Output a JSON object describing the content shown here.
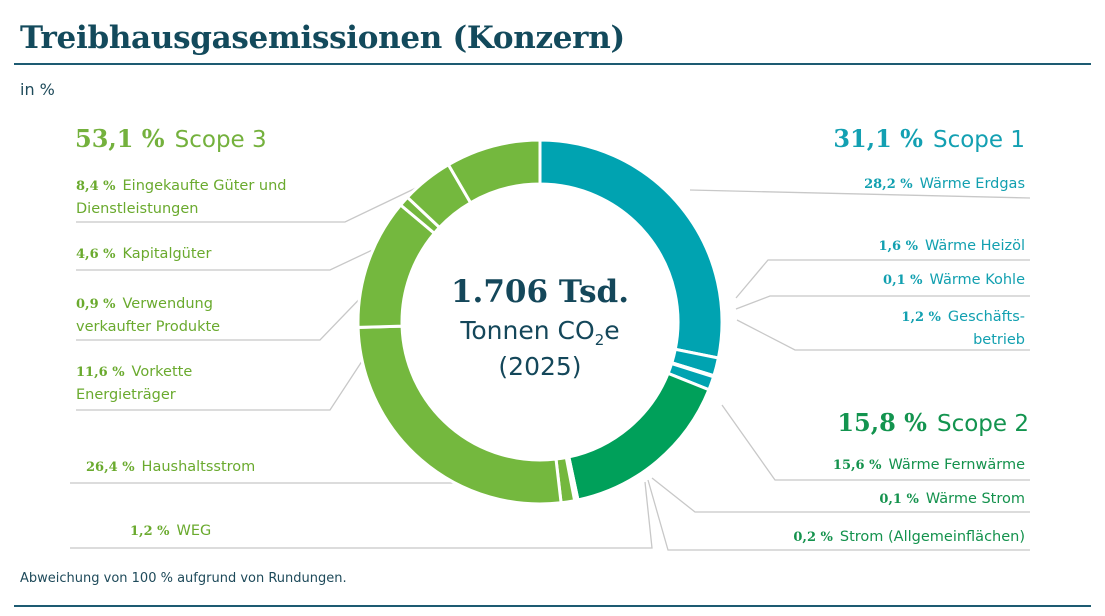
{
  "title": "Treibhausgasemissionen (Konzern)",
  "unit": "in %",
  "footnote": "Abweichung von 100 % aufgrund von Rundungen.",
  "center": {
    "total": "1.706 Tsd.",
    "line1_prefix": "Tonnen CO",
    "line1_sub": "2",
    "line1_suffix": "e",
    "line2": "(2025)"
  },
  "scopes": {
    "scope3": {
      "pct": "53,1 %",
      "name": "Scope 3"
    },
    "scope1": {
      "pct": "31,1 %",
      "name": "Scope 1"
    },
    "scope2": {
      "pct": "15,8 %",
      "name": "Scope 2"
    }
  },
  "colors": {
    "scope1": "#00a3b1",
    "scope2": "#00a05a",
    "scope3": "#74b83e",
    "leader": "#c8c8c8",
    "title": "#134a5c"
  },
  "chart_data": {
    "type": "pie",
    "variant": "donut",
    "unit": "%",
    "order": "clockwise from top, Scope 1 first",
    "slices": [
      {
        "label": "Wärme Erdgas",
        "pct_label": "28,2 %",
        "value": 28.2,
        "scope": "scope1"
      },
      {
        "label": "Wärme Heizöl",
        "pct_label": "1,6 %",
        "value": 1.6,
        "scope": "scope1"
      },
      {
        "label": "Wärme Kohle",
        "pct_label": "0,1 %",
        "value": 0.1,
        "scope": "scope1"
      },
      {
        "label": "Geschäfts-betrieb",
        "pct_label": "1,2 %",
        "value": 1.2,
        "scope": "scope1"
      },
      {
        "label": "Wärme Fernwärme",
        "pct_label": "15,6 %",
        "value": 15.6,
        "scope": "scope2"
      },
      {
        "label": "Wärme Strom",
        "pct_label": "0,1 %",
        "value": 0.1,
        "scope": "scope2"
      },
      {
        "label": "Strom (Allgemeinflächen)",
        "pct_label": "0,2 %",
        "value": 0.2,
        "scope": "scope2"
      },
      {
        "label": "WEG",
        "pct_label": "1,2 %",
        "value": 1.2,
        "scope": "scope3"
      },
      {
        "label": "Haushaltsstrom",
        "pct_label": "26,4 %",
        "value": 26.4,
        "scope": "scope3"
      },
      {
        "label": "Vorkette Energieträger",
        "pct_label": "11,6 %",
        "value": 11.6,
        "scope": "scope3"
      },
      {
        "label": "Verwendung verkaufter Produkte",
        "pct_label": "0,9 %",
        "value": 0.9,
        "scope": "scope3"
      },
      {
        "label": "Kapitalgüter",
        "pct_label": "4,6 %",
        "value": 4.6,
        "scope": "scope3"
      },
      {
        "label": "Eingekaufte Güter und Dienstleistungen",
        "pct_label": "8,4 %",
        "value": 8.4,
        "scope": "scope3"
      }
    ]
  }
}
